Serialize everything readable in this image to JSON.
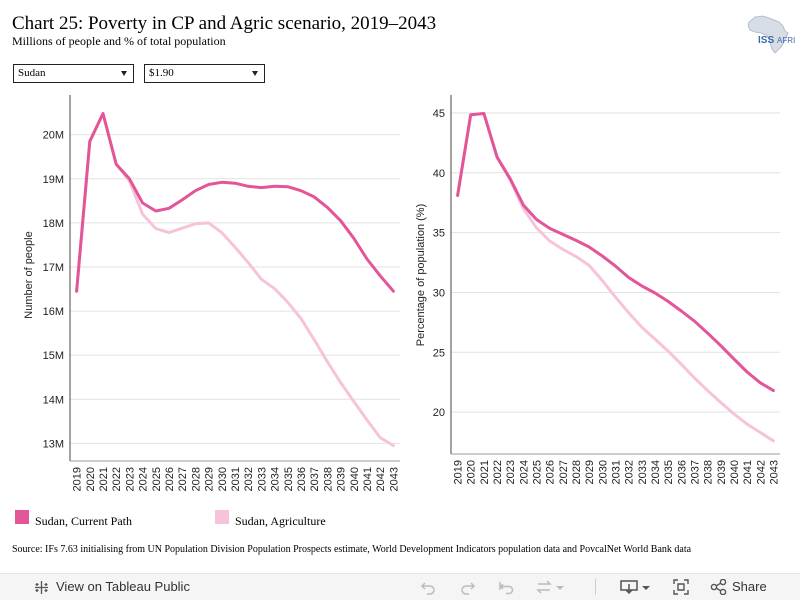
{
  "header": {
    "title": "Chart 25: Poverty in CP and Agric scenario, 2019–2043",
    "subtitle": "Millions of people and % of total population"
  },
  "logo": {
    "text": "ISS",
    "text_suffix": "AFRI"
  },
  "filters": {
    "country": "Sudan",
    "poverty_line": "$1.90"
  },
  "colors": {
    "current_path": "#e35597",
    "agriculture": "#f7c3da",
    "grid": "#e2e2e2",
    "axis": "#444444"
  },
  "legend": {
    "current_path": "Sudan, Current Path",
    "agriculture": "Sudan, Agriculture"
  },
  "source": "Source: IFs 7.63 initialising from UN Population Division Population Prospects estimate, World Development Indicators population data and PovcalNet World Bank data",
  "footer": {
    "view_label": "View on Tableau Public",
    "share_label": "Share"
  },
  "chart_data": [
    {
      "type": "line",
      "ylabel": "Number of people",
      "ylim": [
        12.6,
        20.9
      ],
      "yticks": [
        13,
        14,
        15,
        16,
        17,
        18,
        19,
        20
      ],
      "ytick_labels": [
        "13M",
        "14M",
        "15M",
        "16M",
        "17M",
        "18M",
        "19M",
        "20M"
      ],
      "x": [
        2019,
        2020,
        2021,
        2022,
        2023,
        2024,
        2025,
        2026,
        2027,
        2028,
        2029,
        2030,
        2031,
        2032,
        2033,
        2034,
        2035,
        2036,
        2037,
        2038,
        2039,
        2040,
        2041,
        2042,
        2043
      ],
      "grid": true,
      "series": [
        {
          "name": "Sudan, Current Path",
          "color": "#e35597",
          "values": [
            16.45,
            19.85,
            20.48,
            19.33,
            19.0,
            18.45,
            18.27,
            18.33,
            18.52,
            18.73,
            18.87,
            18.92,
            18.9,
            18.83,
            18.8,
            18.83,
            18.82,
            18.73,
            18.59,
            18.35,
            18.05,
            17.65,
            17.18,
            16.8,
            16.45
          ]
        },
        {
          "name": "Sudan, Agriculture",
          "color": "#f7c3da",
          "values": [
            16.45,
            19.85,
            20.48,
            19.33,
            18.95,
            18.2,
            17.87,
            17.78,
            17.88,
            17.98,
            18.0,
            17.78,
            17.45,
            17.1,
            16.72,
            16.51,
            16.2,
            15.83,
            15.35,
            14.85,
            14.38,
            13.95,
            13.53,
            13.13,
            12.95
          ]
        }
      ]
    },
    {
      "type": "line",
      "ylabel": "Percentage of population (%)",
      "ylim": [
        16.5,
        46.5
      ],
      "yticks": [
        20,
        25,
        30,
        35,
        40,
        45
      ],
      "ytick_labels": [
        "20",
        "25",
        "30",
        "35",
        "40",
        "45"
      ],
      "x": [
        2019,
        2020,
        2021,
        2022,
        2023,
        2024,
        2025,
        2026,
        2027,
        2028,
        2029,
        2030,
        2031,
        2032,
        2033,
        2034,
        2035,
        2036,
        2037,
        2038,
        2039,
        2040,
        2041,
        2042,
        2043
      ],
      "grid": true,
      "series": [
        {
          "name": "Sudan, Current Path",
          "color": "#e35597",
          "values": [
            38.1,
            44.85,
            44.95,
            41.3,
            39.5,
            37.3,
            36.1,
            35.35,
            34.85,
            34.35,
            33.8,
            33.05,
            32.2,
            31.25,
            30.55,
            29.95,
            29.25,
            28.45,
            27.6,
            26.6,
            25.55,
            24.45,
            23.35,
            22.45,
            21.8
          ]
        },
        {
          "name": "Sudan, Agriculture",
          "color": "#f7c3da",
          "values": [
            38.1,
            44.85,
            44.95,
            41.3,
            39.4,
            37.0,
            35.4,
            34.3,
            33.6,
            33.0,
            32.25,
            31.0,
            29.6,
            28.3,
            27.1,
            26.1,
            25.1,
            24.0,
            22.85,
            21.8,
            20.8,
            19.85,
            19.0,
            18.3,
            17.6
          ]
        }
      ]
    }
  ]
}
